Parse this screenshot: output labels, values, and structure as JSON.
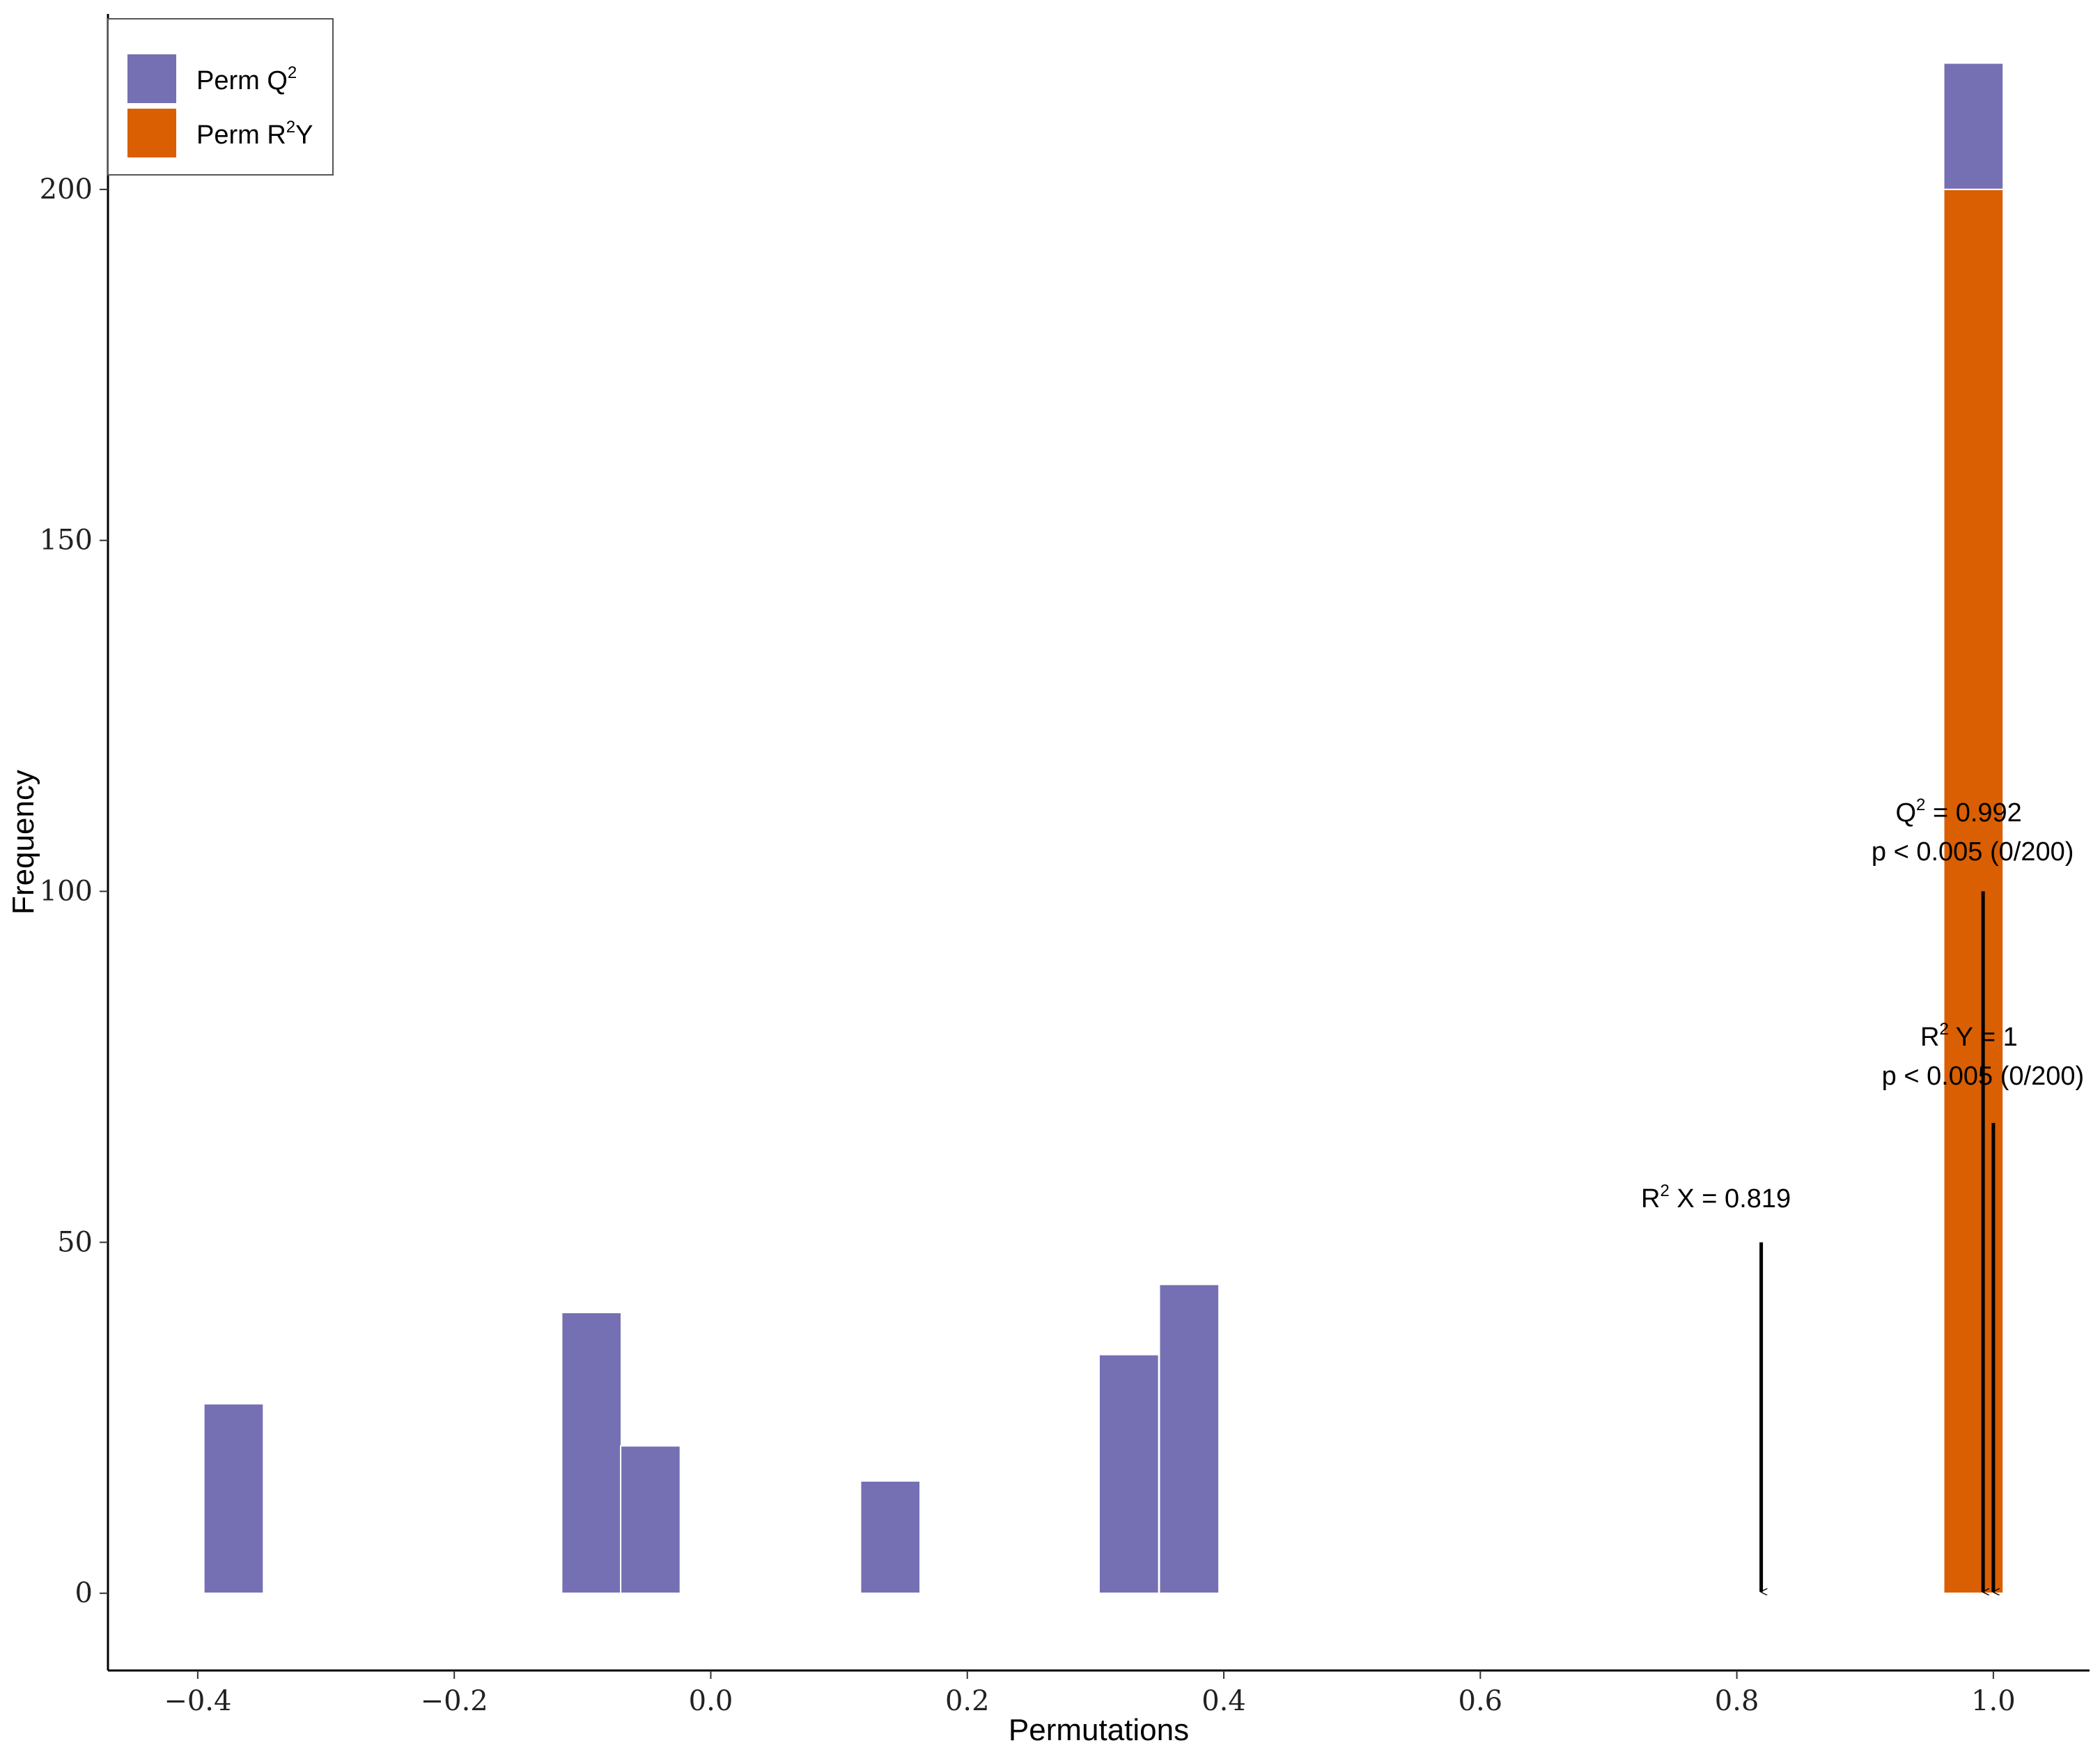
{
  "chart_data": {
    "type": "bar",
    "title": "",
    "xlabel": "Permutations",
    "ylabel": "Frequency",
    "xlim": [
      -0.47,
      1.075
    ],
    "ylim": [
      -11,
      225
    ],
    "xticks": [
      -0.4,
      -0.2,
      0.0,
      0.2,
      0.4,
      0.6,
      0.8,
      1.0
    ],
    "xtick_labels": [
      "−0.4",
      "−0.2",
      "0.0",
      "0.2",
      "0.4",
      "0.6",
      "0.8",
      "1.0"
    ],
    "yticks": [
      0,
      50,
      100,
      150,
      200
    ],
    "ytick_labels": [
      "0",
      "50",
      "100",
      "150",
      "200"
    ],
    "grid": false,
    "legend_position": "top-left",
    "bin_width": 0.0465,
    "stacked": true,
    "series": [
      {
        "name": "Perm Q2",
        "legend_label": "Perm Q",
        "legend_sup": "2",
        "color": "#7570b3",
        "bins": [
          {
            "x": -0.372,
            "count": 27
          },
          {
            "x": -0.093,
            "count": 40
          },
          {
            "x": -0.047,
            "count": 21
          },
          {
            "x": 0.14,
            "count": 16
          },
          {
            "x": 0.326,
            "count": 34
          },
          {
            "x": 0.373,
            "count": 44
          },
          {
            "x": 0.9845,
            "count": 18,
            "stack_on": 200
          }
        ]
      },
      {
        "name": "Perm R2Y",
        "legend_label": "Perm R",
        "legend_sup": "2",
        "legend_suffix": "Y",
        "color": "#d95f02",
        "bins": [
          {
            "x": 0.9845,
            "count": 200
          }
        ]
      }
    ],
    "annotations": [
      {
        "label_main": "R",
        "label_sup": "2",
        "label_rest": " X = 0.819",
        "line2": "",
        "x": 0.819,
        "arrow_from": 50,
        "arrow_to": 0,
        "label_y": 55
      },
      {
        "label_main": "Q",
        "label_sup": "2",
        "label_rest": " = 0.992",
        "line2": "p < 0.005 (0/200)",
        "x": 0.992,
        "arrow_from": 100,
        "arrow_to": 0,
        "label_y": 110
      },
      {
        "label_main": "R",
        "label_sup": "2",
        "label_rest": " Y = 1",
        "line2": "p < 0.005 (0/200)",
        "x": 1.0,
        "arrow_from": 67,
        "arrow_to": 0,
        "label_y": 78
      }
    ]
  }
}
